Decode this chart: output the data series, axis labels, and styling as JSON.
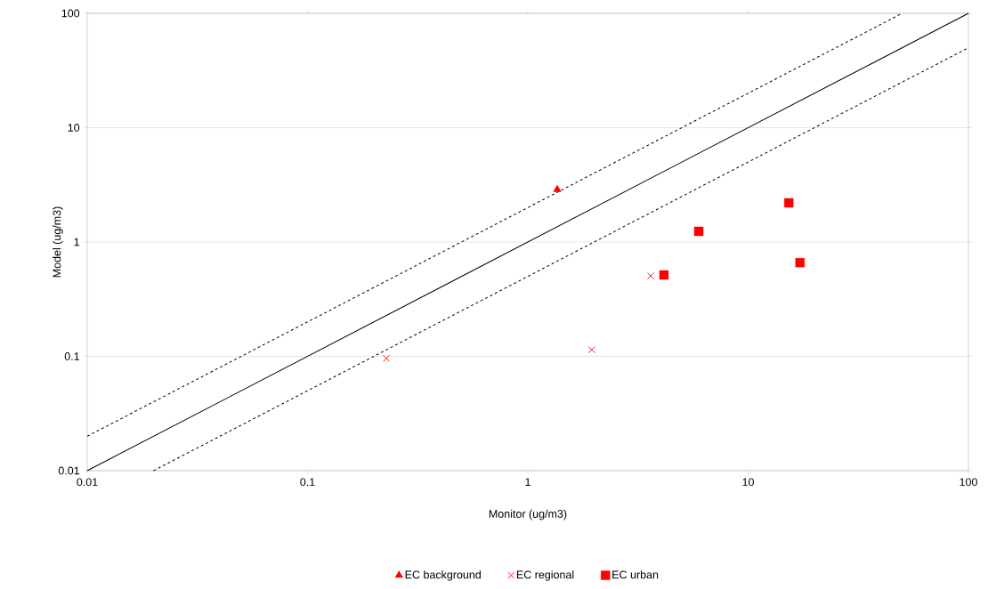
{
  "chart_data": {
    "type": "scatter",
    "xlabel": "Monitor (ug/m3)",
    "ylabel": "Model (ug/m3)",
    "log": "xy",
    "xlim": [
      0.01,
      100
    ],
    "ylim": [
      0.01,
      100
    ],
    "xticks": [
      0.01,
      0.1,
      1,
      10,
      100
    ],
    "yticks": [
      0.01,
      0.1,
      1,
      10,
      100
    ],
    "grid": "y",
    "legend": "bottom",
    "series": [
      {
        "name": "EC background",
        "color": "#ff0000",
        "marker": "triangle",
        "x": [
          1.36
        ],
        "values": [
          2.88
        ]
      },
      {
        "name": "EC regional",
        "color": "#ff0000",
        "marker": "cross",
        "x": [
          0.228,
          1.95,
          3.61
        ],
        "values": [
          0.096,
          0.114,
          0.506
        ]
      },
      {
        "name": "EC urban",
        "color": "#ff0000",
        "marker": "square",
        "x": [
          4.15,
          5.97,
          15.3,
          17.2
        ],
        "values": [
          0.515,
          1.24,
          2.2,
          0.66
        ]
      },
      {
        "type": "line",
        "color": "#000000",
        "marker": "none",
        "line_style": "solid",
        "x": [
          0.01,
          100
        ],
        "values": [
          0.01,
          100
        ]
      },
      {
        "type": "line",
        "color": "#000000",
        "marker": "none",
        "line_style": "dashed",
        "x": [
          0.01,
          50
        ],
        "values": [
          0.02,
          100
        ]
      },
      {
        "type": "line",
        "color": "#000000",
        "marker": "none",
        "line_style": "dashed",
        "x": [
          0.02,
          100
        ],
        "values": [
          0.01,
          50
        ]
      }
    ]
  }
}
